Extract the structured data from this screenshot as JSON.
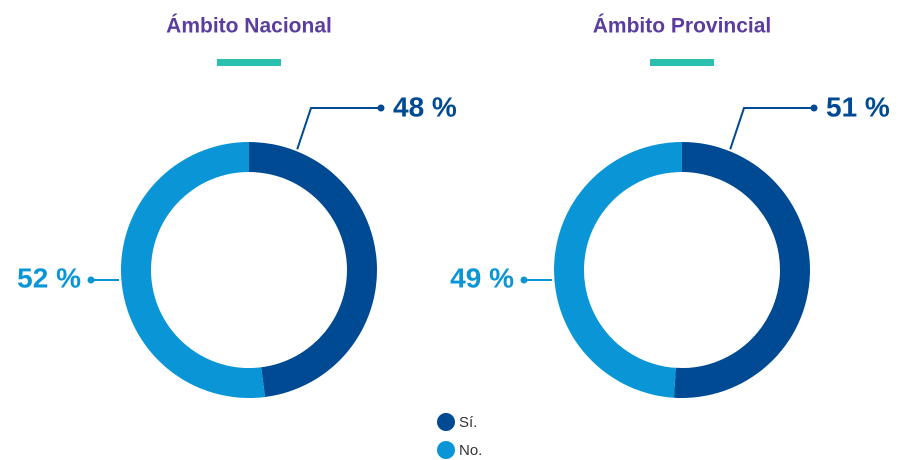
{
  "chart_data": [
    {
      "type": "pie",
      "title": "Ámbito Nacional",
      "categories": [
        "Sí.",
        "No."
      ],
      "values": [
        48,
        52
      ],
      "value_labels": [
        "48 %",
        "52 %"
      ],
      "colors": [
        "#004a93",
        "#0a96d6"
      ]
    },
    {
      "type": "pie",
      "title": "Ámbito Provincial",
      "categories": [
        "Sí.",
        "No."
      ],
      "values": [
        51,
        49
      ],
      "value_labels": [
        "51 %",
        "49 %"
      ],
      "colors": [
        "#004a93",
        "#0a96d6"
      ]
    }
  ]
}
